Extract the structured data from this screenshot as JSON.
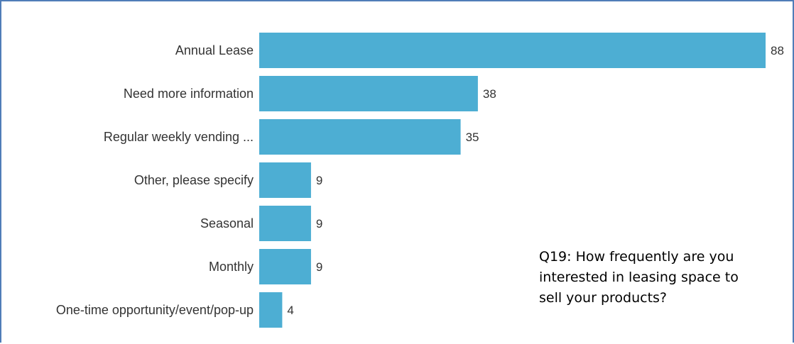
{
  "question_text": "Q19: How frequently are you\ninterested in leasing space to\nsell your products?",
  "colors": {
    "bar": "#4daed3",
    "frame": "#4f7db8",
    "text": "#333333"
  },
  "chart_data": {
    "type": "bar",
    "orientation": "horizontal",
    "title": "",
    "xlabel": "",
    "ylabel": "",
    "categories": [
      "Annual Lease",
      "Need more information",
      "Regular weekly vending ...",
      "Other, please specify",
      "Seasonal",
      "Monthly",
      "One-time opportunity/event/pop-up"
    ],
    "values": [
      88,
      38,
      35,
      9,
      9,
      9,
      4
    ],
    "xlim": [
      0,
      88
    ],
    "grid": false,
    "legend": "none",
    "data_labels": true
  }
}
